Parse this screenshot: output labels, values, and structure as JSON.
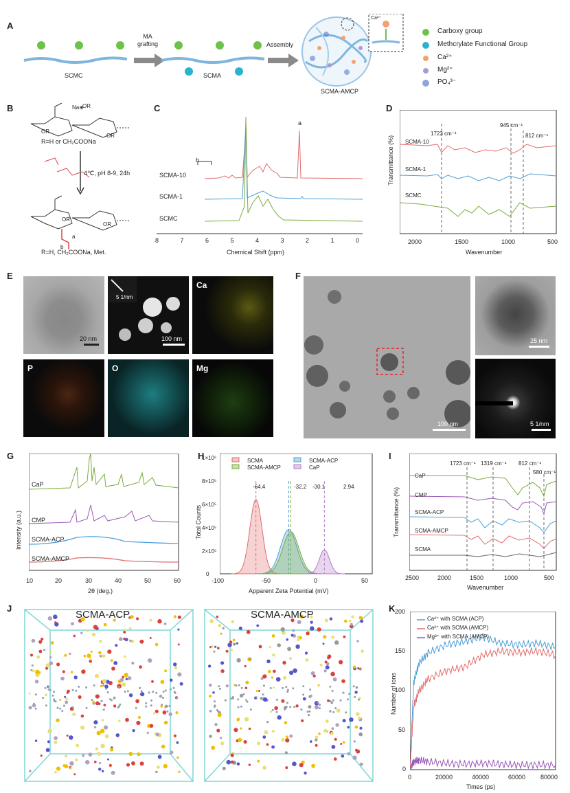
{
  "panels": {
    "A": "A",
    "B": "B",
    "C": "C",
    "D": "D",
    "E": "E",
    "F": "F",
    "G": "G",
    "H": "H",
    "I": "I",
    "J": "J",
    "K": "K"
  },
  "panelA": {
    "arrow1": [
      "MA",
      "grafting"
    ],
    "arrow2": "Assembly",
    "chain_labels": [
      "SCMC",
      "SCMA",
      "SCMA-AMCP"
    ],
    "inset_ion": "Ca²⁺",
    "legend": [
      {
        "label": "Carboxy group",
        "color": "#6cc24a"
      },
      {
        "label": "Methcrylate Functional Group",
        "color": "#2bb3c9"
      },
      {
        "label": "Ca²⁺",
        "color": "#f4a26b"
      },
      {
        "label": "Mg²⁺",
        "color": "#a79bd6"
      },
      {
        "label": "PO₄³⁻",
        "color": "#5b7fd1"
      }
    ]
  },
  "panelB": {
    "top_label": "R=H or CH₂COONa",
    "conditions": "4℃, pH 8-9, 24h",
    "bottom_label": "R=H, CH₂COONa, Met.",
    "groups": [
      "OR",
      "OR",
      "OR",
      "OR",
      "OR",
      "O",
      "O",
      "Na⊕"
    ],
    "marks": [
      "a",
      "b"
    ]
  },
  "panelC": {
    "xlabel": "Chemical Shift (ppm)",
    "xticks": [
      "8",
      "7",
      "6",
      "5",
      "4",
      "3",
      "2",
      "1",
      "0"
    ],
    "series": [
      {
        "name": "SCMA-10",
        "color": "#e26b6b"
      },
      {
        "name": "SCMA-1",
        "color": "#4a9fd8"
      },
      {
        "name": "SCMC",
        "color": "#7aaa3a"
      }
    ],
    "annotations": [
      "b",
      "a"
    ]
  },
  "panelD": {
    "ylabel": "Transmittance (%)",
    "xlabel": "Wavenumber",
    "xticks": [
      "2000",
      "1500",
      "1000",
      "500"
    ],
    "series": [
      {
        "name": "SCMA-10",
        "color": "#e26b6b"
      },
      {
        "name": "SCMA-1",
        "color": "#4a9fd8"
      },
      {
        "name": "SCMC",
        "color": "#7aaa3a"
      }
    ],
    "markers": [
      "1723 cm⁻¹",
      "945 cm⁻¹",
      "812 cm⁻¹"
    ]
  },
  "panelE": {
    "tiles": [
      {
        "label": "",
        "scale": "20 nm"
      },
      {
        "label": "",
        "scale": "100 nm",
        "inset": "5 1/nm"
      },
      {
        "label": "Ca",
        "scale": ""
      },
      {
        "label": "P",
        "scale": ""
      },
      {
        "label": "O",
        "scale": ""
      },
      {
        "label": "Mg",
        "scale": ""
      }
    ]
  },
  "panelF": {
    "scale_main": "100 nm",
    "scale_zoom": "25 nm",
    "scale_saed": "5 1/nm"
  },
  "panelG": {
    "ylabel": "Intensity (a.u.)",
    "xlabel": "2θ (deg.)",
    "xticks": [
      "10",
      "20",
      "30",
      "40",
      "50",
      "60"
    ],
    "series": [
      {
        "name": "CaP",
        "color": "#7aaa3a"
      },
      {
        "name": "CMP",
        "color": "#9b59b6"
      },
      {
        "name": "SCMA-ACP",
        "color": "#4a9fd8"
      },
      {
        "name": "SCMA-AMCP",
        "color": "#e26b6b"
      }
    ]
  },
  "panelH": {
    "ylabel": "Total Counts",
    "xlabel": "Apparent Zeta Potential (mV)",
    "xticks": [
      "-100",
      "-50",
      "0",
      "50"
    ],
    "yticks": [
      "0",
      "2×10⁵",
      "4×10⁵",
      "6×10⁵",
      "8×10⁵",
      "1×10⁶"
    ],
    "legend": [
      {
        "name": "SCMA",
        "color": "#e26b6b"
      },
      {
        "name": "SCMA-ACP",
        "color": "#4a9fd8"
      },
      {
        "name": "SCMA-AMCP",
        "color": "#7aaa3a"
      },
      {
        "name": "CaP",
        "color": "#b07cc6"
      }
    ],
    "peaks": [
      "-64.4",
      "-32.2",
      "-30.1",
      "2.94"
    ]
  },
  "panelI": {
    "ylabel": "Transmittance (%)",
    "xlabel": "Wavenumber",
    "xticks": [
      "2500",
      "2000",
      "1500",
      "1000",
      "500"
    ],
    "series": [
      {
        "name": "CaP",
        "color": "#7aaa3a"
      },
      {
        "name": "CMP",
        "color": "#9b59b6"
      },
      {
        "name": "SCMA-ACP",
        "color": "#4a9fd8"
      },
      {
        "name": "SCMA-AMCP",
        "color": "#e26b6b"
      },
      {
        "name": "SCMA",
        "color": "#666666"
      }
    ],
    "markers": [
      "1723 cm⁻¹",
      "1319 cm⁻¹",
      "812 cm⁻¹",
      "580 cm⁻¹"
    ]
  },
  "panelJ": {
    "titles": [
      "SCMA-ACP",
      "SCMA-AMCP"
    ]
  },
  "panelK": {
    "ylabel": "Number of ions",
    "xlabel": "Times (ps)",
    "xticks": [
      "0",
      "20000",
      "40000",
      "60000",
      "80000"
    ],
    "yticks": [
      "0",
      "50",
      "100",
      "150",
      "200"
    ],
    "legend": [
      {
        "name": "Ca²⁺ with SCMA (ACP)",
        "color": "#4a9fd8"
      },
      {
        "name": "Ca²⁺ with SCMA (AMCP)",
        "color": "#e26b6b"
      },
      {
        "name": "Mg²⁺ with SCMA (AMCP)",
        "color": "#9b59b6"
      }
    ]
  },
  "chart_data": [
    {
      "type": "line",
      "panel": "K",
      "xlabel": "Times (ps)",
      "ylabel": "Number of ions",
      "xlim": [
        0,
        80000
      ],
      "ylim": [
        0,
        200
      ],
      "x": [
        0,
        2000,
        5000,
        10000,
        20000,
        30000,
        40000,
        50000,
        60000,
        70000,
        80000
      ],
      "series": [
        {
          "name": "Ca²⁺ with SCMA (ACP)",
          "values": [
            0,
            110,
            135,
            148,
            158,
            162,
            168,
            160,
            158,
            160,
            155
          ]
        },
        {
          "name": "Ca²⁺ with SCMA (AMCP)",
          "values": [
            0,
            80,
            100,
            115,
            125,
            130,
            145,
            150,
            148,
            150,
            145
          ]
        },
        {
          "name": "Mg²⁺ with SCMA (AMCP)",
          "values": [
            0,
            10,
            12,
            10,
            8,
            7,
            8,
            7,
            6,
            6,
            6
          ]
        }
      ]
    },
    {
      "type": "area",
      "panel": "H",
      "xlabel": "Apparent Zeta Potential (mV)",
      "ylabel": "Total Counts",
      "xlim": [
        -100,
        50
      ],
      "ylim": [
        0,
        1000000
      ],
      "series": [
        {
          "name": "SCMA",
          "peak_x": -64.4,
          "peak_y": 620000
        },
        {
          "name": "SCMA-ACP",
          "peak_x": -32.2,
          "peak_y": 370000
        },
        {
          "name": "SCMA-AMCP",
          "peak_x": -30.1,
          "peak_y": 350000
        },
        {
          "name": "CaP",
          "peak_x": 2.94,
          "peak_y": 200000
        }
      ]
    }
  ]
}
